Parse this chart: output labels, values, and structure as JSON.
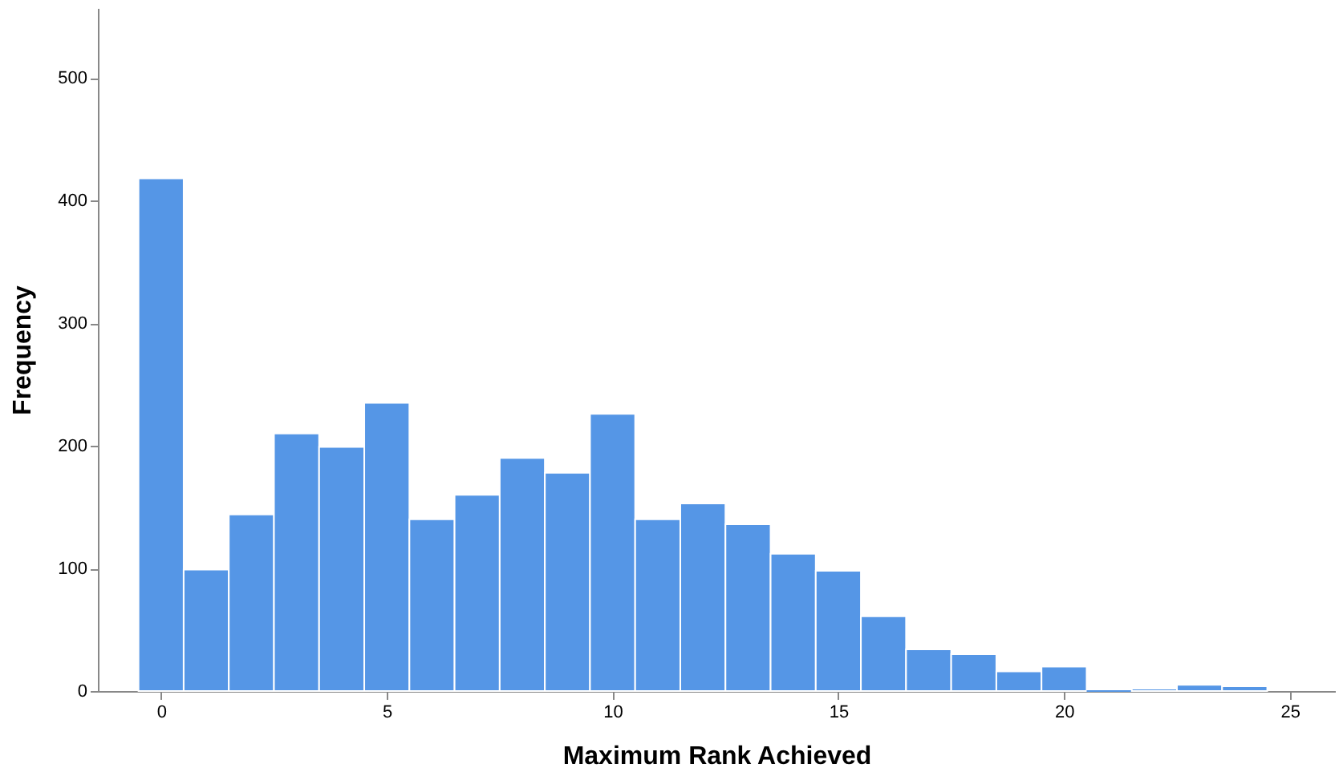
{
  "chart_data": {
    "type": "histogram",
    "xlabel": "Maximum Rank Achieved",
    "ylabel": "Frequency",
    "bins": [
      -0.5,
      0.5,
      1.5,
      2.5,
      3.5,
      4.5,
      5.5,
      6.5,
      7.5,
      8.5,
      9.5,
      10.5,
      11.5,
      12.5,
      13.5,
      14.5,
      15.5,
      16.5,
      17.5,
      18.5,
      19.5,
      20.5,
      21.5,
      22.5,
      23.5,
      24.5
    ],
    "values": [
      418,
      99,
      144,
      210,
      199,
      235,
      140,
      160,
      190,
      178,
      226,
      140,
      153,
      136,
      112,
      98,
      61,
      34,
      30,
      16,
      20,
      0,
      2,
      5,
      4
    ],
    "color": "#5596e6",
    "xlim": [
      -1.4,
      26
    ],
    "xticks": [
      0,
      5,
      10,
      15,
      20,
      25
    ],
    "ylim": [
      0,
      557
    ],
    "yticks": [
      0,
      100,
      200,
      300,
      400,
      500
    ],
    "grid": false
  }
}
